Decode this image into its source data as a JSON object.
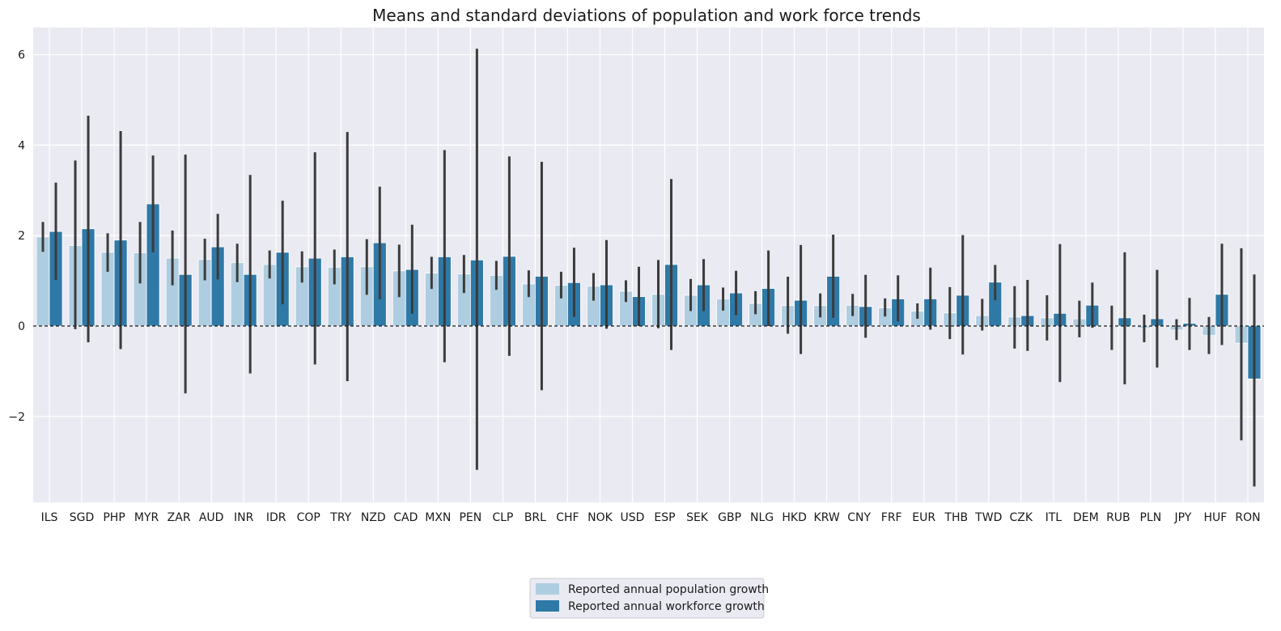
{
  "chart_data": {
    "type": "bar",
    "title": "Means and standard deviations of population and work force trends",
    "xlabel": "",
    "ylabel": "",
    "ylim": [
      -3.9,
      6.6
    ],
    "yticks": [
      -2,
      0,
      2,
      4,
      6
    ],
    "ytick_labels": [
      "−2",
      "0",
      "2",
      "4",
      "6"
    ],
    "grid": true,
    "legend_position": "bottom-center",
    "reference_line": {
      "y": 0,
      "style": "dashed"
    },
    "colors": {
      "background": "#eaeaf2",
      "grid": "#ffffff",
      "population": "#afcde0",
      "workforce": "#2f79a7",
      "error_bar": "#3b3b3b"
    },
    "categories": [
      "ILS",
      "SGD",
      "PHP",
      "MYR",
      "ZAR",
      "AUD",
      "INR",
      "IDR",
      "COP",
      "TRY",
      "NZD",
      "CAD",
      "MXN",
      "PEN",
      "CLP",
      "BRL",
      "CHF",
      "NOK",
      "USD",
      "ESP",
      "SEK",
      "GBP",
      "NLG",
      "HKD",
      "KRW",
      "CNY",
      "FRF",
      "EUR",
      "THB",
      "TWD",
      "CZK",
      "ITL",
      "DEM",
      "RUB",
      "PLN",
      "JPY",
      "HUF",
      "RON"
    ],
    "series": [
      {
        "name": "Reported annual population growth",
        "values": [
          1.97,
          1.78,
          1.63,
          1.62,
          1.5,
          1.47,
          1.4,
          1.36,
          1.31,
          1.3,
          1.31,
          1.22,
          1.17,
          1.15,
          1.12,
          0.93,
          0.9,
          0.88,
          0.77,
          0.7,
          0.68,
          0.6,
          0.5,
          0.45,
          0.45,
          0.46,
          0.4,
          0.33,
          0.29,
          0.23,
          0.2,
          0.18,
          0.16,
          0.0,
          -0.05,
          -0.09,
          -0.21,
          -0.38
        ],
        "err_low": [
          1.64,
          -0.07,
          1.2,
          0.94,
          0.9,
          1.01,
          0.97,
          1.05,
          0.96,
          0.92,
          0.69,
          0.64,
          0.82,
          0.73,
          0.8,
          0.64,
          0.61,
          0.56,
          0.53,
          -0.05,
          0.33,
          0.34,
          0.26,
          -0.17,
          0.19,
          0.22,
          0.21,
          0.16,
          -0.29,
          -0.1,
          -0.5,
          -0.32,
          -0.25,
          -0.53,
          -0.36,
          -0.31,
          -0.62,
          -2.53
        ],
        "err_high": [
          2.3,
          3.66,
          2.05,
          2.3,
          2.11,
          1.93,
          1.82,
          1.67,
          1.65,
          1.69,
          1.92,
          1.8,
          1.53,
          1.57,
          1.44,
          1.23,
          1.2,
          1.17,
          1.01,
          1.46,
          1.04,
          0.85,
          0.77,
          1.09,
          0.72,
          0.71,
          0.61,
          0.5,
          0.86,
          0.6,
          0.88,
          0.68,
          0.56,
          0.45,
          0.25,
          0.15,
          0.2,
          1.72
        ]
      },
      {
        "name": "Reported annual workforce growth",
        "values": [
          2.09,
          2.15,
          1.9,
          2.7,
          1.14,
          1.75,
          1.14,
          1.63,
          1.5,
          1.53,
          1.84,
          1.25,
          1.53,
          1.46,
          1.54,
          1.1,
          0.96,
          0.91,
          0.65,
          1.36,
          0.91,
          0.73,
          0.83,
          0.57,
          1.1,
          0.43,
          0.6,
          0.6,
          0.68,
          0.97,
          0.23,
          0.28,
          0.46,
          0.18,
          0.16,
          0.06,
          0.7,
          -1.17
        ],
        "err_low": [
          1.02,
          -0.36,
          -0.51,
          1.63,
          -1.49,
          1.03,
          -1.05,
          0.48,
          -0.85,
          -1.22,
          0.59,
          0.27,
          -0.8,
          -3.18,
          -0.66,
          -1.42,
          0.2,
          -0.06,
          0.0,
          -0.53,
          0.33,
          0.24,
          0.0,
          -0.62,
          0.18,
          -0.26,
          0.1,
          -0.08,
          -0.63,
          0.57,
          -0.55,
          -1.24,
          -0.04,
          -1.29,
          -0.92,
          -0.53,
          -0.42,
          -3.55
        ],
        "err_high": [
          3.17,
          4.65,
          4.31,
          3.77,
          3.79,
          2.48,
          3.34,
          2.77,
          3.84,
          4.29,
          3.08,
          2.24,
          3.89,
          6.13,
          3.75,
          3.63,
          1.73,
          1.9,
          1.31,
          3.25,
          1.48,
          1.22,
          1.67,
          1.79,
          2.02,
          1.13,
          1.12,
          1.29,
          2.01,
          1.35,
          1.02,
          1.81,
          0.96,
          1.63,
          1.24,
          0.62,
          1.82,
          1.14
        ]
      }
    ]
  }
}
